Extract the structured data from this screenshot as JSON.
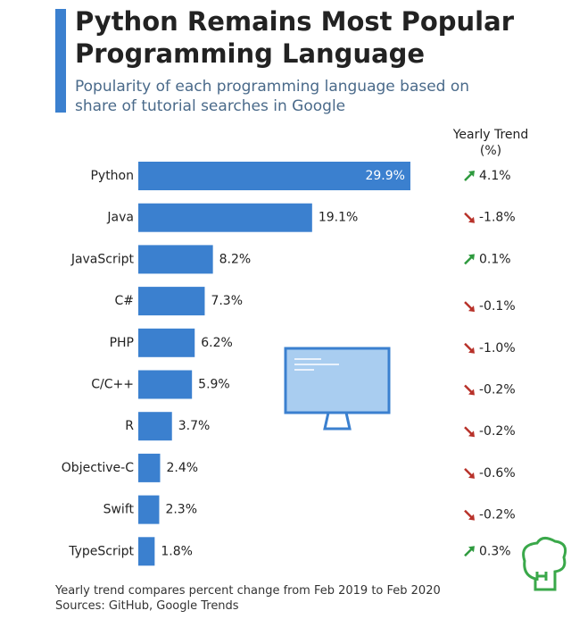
{
  "chart_data": {
    "type": "bar",
    "orientation": "horizontal",
    "title": "Python Remains Most Popular Programming Language",
    "subtitle": "Popularity of each programming language based on share of tutorial searches in Google",
    "categories": [
      "Python",
      "Java",
      "JavaScript",
      "C#",
      "PHP",
      "C/C++",
      "R",
      "Objective-C",
      "Swift",
      "TypeScript"
    ],
    "values": [
      29.9,
      19.1,
      8.2,
      7.3,
      6.2,
      5.9,
      3.7,
      2.4,
      2.3,
      1.8
    ],
    "value_labels": [
      "29.9%",
      "19.1%",
      "8.2%",
      "7.3%",
      "6.2%",
      "5.9%",
      "3.7%",
      "2.4%",
      "2.3%",
      "1.8%"
    ],
    "color": "#3b80cf",
    "trend": {
      "header": "Yearly Trend (%)",
      "values": [
        4.1,
        -1.8,
        0.1,
        -0.1,
        -1.0,
        -0.2,
        -0.2,
        -0.6,
        -0.2,
        0.3
      ],
      "value_labels": [
        "4.1%",
        "-1.8%",
        "0.1%",
        "-0.1%",
        "-1.0%",
        "-0.2%",
        "-0.2%",
        "-0.6%",
        "-0.2%",
        "0.3%"
      ],
      "up_color": "#2e9a3e",
      "down_color": "#b8322a"
    },
    "note": "Yearly trend compares percent change from Feb 2019 to Feb 2020",
    "source": "Sources: GitHub, Google Trends"
  }
}
